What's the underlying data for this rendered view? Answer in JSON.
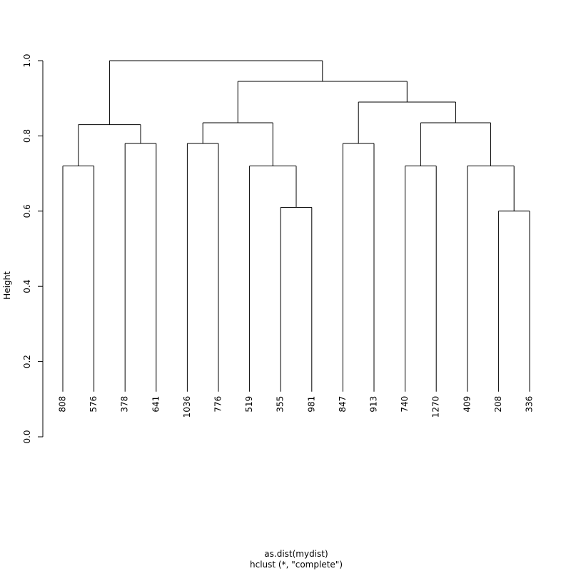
{
  "chart_data": {
    "type": "dendrogram",
    "ylabel": "Height",
    "xlabel": "as.dist(mydist)",
    "subtitle": "hclust (*, \"complete\")",
    "ylim": [
      0,
      1.0
    ],
    "yticks": [
      {
        "value": 0,
        "label": "0.0"
      },
      0.2,
      0.4,
      0.6,
      0.8,
      {
        "value": 1.0,
        "label": "1.0"
      }
    ],
    "color": "#000000",
    "labels": [
      "808",
      "576",
      "378",
      "641",
      "1036",
      "776",
      "519",
      "355",
      "981",
      "847",
      "913",
      "740",
      "1270",
      "409",
      "208",
      "336"
    ],
    "merges": [
      [
        0.72,
        -1,
        -2
      ],
      [
        0.78,
        -3,
        -4
      ],
      [
        0.83,
        1,
        2
      ],
      [
        0.78,
        -5,
        -6
      ],
      [
        0.61,
        -8,
        -9
      ],
      [
        0.72,
        -7,
        5
      ],
      [
        0.835,
        4,
        6
      ],
      [
        0.78,
        -10,
        -11
      ],
      [
        0.72,
        -12,
        -13
      ],
      [
        0.6,
        -15,
        -16
      ],
      [
        0.72,
        -14,
        10
      ],
      [
        0.835,
        9,
        11
      ],
      [
        0.89,
        8,
        12
      ],
      [
        0.945,
        7,
        13
      ],
      [
        1.0,
        3,
        14
      ]
    ]
  }
}
